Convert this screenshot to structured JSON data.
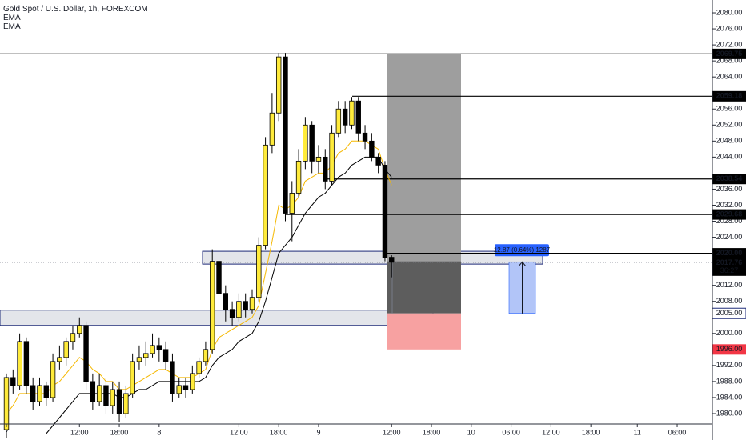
{
  "chart_data": {
    "type": "candlestick",
    "title": "Gold Spot / U.S. Dollar, 1h, FOREXCOM",
    "open": [
      1976,
      1989,
      1987,
      1998,
      1987,
      1983,
      1987,
      1984,
      1993,
      1994,
      1998,
      2000,
      2002,
      1988,
      1983,
      1987,
      1982,
      1986,
      1980,
      1985,
      1993,
      1994,
      1995,
      1997,
      1996,
      1993,
      1985,
      1987,
      1986,
      1990,
      1993,
      1996,
      2018,
      2010,
      2006,
      2004,
      2008,
      2006,
      2009,
      2022,
      2047,
      2055,
      2069,
      2030,
      2035,
      2043,
      2052,
      2043,
      2044,
      2038,
      2050,
      2056,
      2052,
      2058,
      2050,
      2048,
      2044,
      2042,
      2019
    ],
    "high": [
      1990,
      1991,
      2000,
      1999,
      1989,
      1989,
      1988,
      1995,
      1997,
      1999,
      2002,
      2004,
      2003,
      1990,
      1990,
      1989,
      1988,
      1988,
      1987,
      1995,
      1997,
      1998,
      2000,
      1999,
      1998,
      1995,
      1989,
      1989,
      1992,
      1994,
      1998,
      2021,
      2021,
      2012,
      2008,
      2010,
      2010,
      2011,
      2024,
      2049,
      2060,
      2070,
      2070,
      2038,
      2046,
      2054,
      2053,
      2047,
      2046,
      2052,
      2058,
      2058,
      2059,
      2059,
      2052,
      2050,
      2045,
      2043,
      2019.5
    ],
    "low": [
      1974,
      1985,
      1986,
      1985,
      1981,
      1982,
      1982,
      1983,
      1991,
      1992,
      1996,
      1999,
      1986,
      1981,
      1982,
      1980,
      1980,
      1978,
      1979,
      1984,
      1991,
      1992,
      1994,
      1993,
      1991,
      1983,
      1984,
      1984,
      1985,
      1989,
      1992,
      1995,
      2008,
      2003,
      2002,
      2003,
      2004,
      2005,
      2008,
      2021,
      2045,
      2053,
      2028,
      2023,
      2034,
      2041,
      2040,
      2040,
      2036,
      2037,
      2049,
      2050,
      2051,
      2048,
      2046,
      2043,
      2040,
      2018,
      2014
    ],
    "close": [
      1989,
      1987,
      1998,
      1987,
      1983,
      1987,
      1984,
      1993,
      1994,
      1998,
      2000,
      2002,
      1988,
      1983,
      1987,
      1982,
      1986,
      1980,
      1985,
      1993,
      1994,
      1995,
      1997,
      1996,
      1993,
      1985,
      1987,
      1986,
      1990,
      1993,
      1996,
      2018,
      2010,
      2006,
      2004,
      2008,
      2006,
      2009,
      2022,
      2047,
      2055,
      2069,
      2030,
      2035,
      2043,
      2052,
      2043,
      2044,
      2038,
      2050,
      2056,
      2052,
      2058,
      2050,
      2048,
      2044,
      2042,
      2019,
      2017.76
    ],
    "up_color": "#ffeb3b",
    "down_color": "#000000",
    "series": [
      {
        "name": "EMA",
        "color": "#f5b800",
        "values": [
          1980,
          1982,
          1985,
          1985,
          1985,
          1985,
          1985,
          1987,
          1988,
          1990,
          1992,
          1994,
          1993,
          1991,
          1990,
          1988,
          1988,
          1986,
          1986,
          1987,
          1988,
          1989,
          1990,
          1991,
          1991,
          1990,
          1989,
          1989,
          1989,
          1990,
          1991,
          1996,
          1999,
          2000,
          2001,
          2002,
          2003,
          2004,
          2007,
          2015,
          2023,
          2032,
          2031,
          2032,
          2034,
          2038,
          2039,
          2040,
          2040,
          2042,
          2045,
          2046,
          2048,
          2048,
          2048,
          2047,
          2046,
          2041,
          2037
        ]
      },
      {
        "name": "EMA",
        "color": "#000000",
        "values": [
          null,
          null,
          null,
          null,
          null,
          null,
          1975,
          1977,
          1979,
          1981,
          1983,
          1985,
          1985,
          1985,
          1985,
          1985,
          1985,
          1984,
          1984,
          1985,
          1986,
          1986,
          1987,
          1988,
          1988,
          1988,
          1988,
          1988,
          1988,
          1988,
          1989,
          1992,
          1994,
          1995,
          1996,
          1998,
          1999,
          2000,
          2003,
          2008,
          2014,
          2020,
          2022,
          2024,
          2027,
          2030,
          2032,
          2034,
          2035,
          2037,
          2039,
          2040,
          2042,
          2043,
          2044,
          2044,
          2044,
          2041,
          2039
        ]
      }
    ],
    "xlim": [
      -0.964,
      106.3
    ],
    "xticks": [
      {
        "value": 0,
        "label": "7"
      },
      {
        "value": 11,
        "label": "12:00"
      },
      {
        "value": 17,
        "label": "18:00"
      },
      {
        "value": 23,
        "label": "8"
      },
      {
        "value": 35,
        "label": "12:00"
      },
      {
        "value": 41,
        "label": "18:00"
      },
      {
        "value": 47,
        "label": "9"
      },
      {
        "value": 58,
        "label": "12:00"
      },
      {
        "value": 64,
        "label": "18:00"
      },
      {
        "value": 70,
        "label": "10"
      },
      {
        "value": 76,
        "label": "06:00"
      },
      {
        "value": 82,
        "label": "12:00"
      },
      {
        "value": 88,
        "label": "18:00"
      },
      {
        "value": 95,
        "label": "11"
      },
      {
        "value": 101,
        "label": "06:00"
      }
    ],
    "ylim": [
      1977.4,
      2083.2
    ],
    "yticks": [
      {
        "value": 2080,
        "label": "2080.00"
      },
      {
        "value": 2076,
        "label": "2076.00"
      },
      {
        "value": 2072,
        "label": "2072.00"
      },
      {
        "value": 2068,
        "label": "2068.00"
      },
      {
        "value": 2064,
        "label": "2064.00"
      },
      {
        "value": 2056,
        "label": "2056.00"
      },
      {
        "value": 2052,
        "label": "2052.00"
      },
      {
        "value": 2048,
        "label": "2048.00"
      },
      {
        "value": 2044,
        "label": "2044.00"
      },
      {
        "value": 2036,
        "label": "2036.00"
      },
      {
        "value": 2032,
        "label": "2032.00"
      },
      {
        "value": 2028,
        "label": "2028.00"
      },
      {
        "value": 2024,
        "label": "2024.00"
      },
      {
        "value": 2012,
        "label": "2012.00"
      },
      {
        "value": 2008,
        "label": "2008.00"
      },
      {
        "value": 2000,
        "label": "2000.00"
      },
      {
        "value": 1992,
        "label": "1992.00"
      },
      {
        "value": 1988,
        "label": "1988.00"
      },
      {
        "value": 1984,
        "label": "1984.00"
      },
      {
        "value": 1980,
        "label": "1980.00"
      }
    ],
    "levels": [
      2069.75,
      2059.18,
      2038.54,
      2029.68,
      {
        "value": 2020,
        "label": "2020.00"
      }
    ],
    "current_price": {
      "value": 2017.76,
      "countdown": "36:27"
    },
    "tags": [
      {
        "value": 2005,
        "label": "2005.00",
        "color": "#ffffff"
      },
      {
        "value": 1996,
        "label": "1996.00",
        "color": "#f23645"
      }
    ],
    "zones": [
      [
        2017.3,
        2020.5
      ],
      [
        2002,
        2005.8
      ]
    ],
    "position": {
      "top": 2069.75,
      "entry": 2018,
      "target": 2005,
      "bottom": 1996
    },
    "measure": {
      "from": 2017.87,
      "to": 2005,
      "label": "12.87 (0.64%) 1287"
    }
  }
}
